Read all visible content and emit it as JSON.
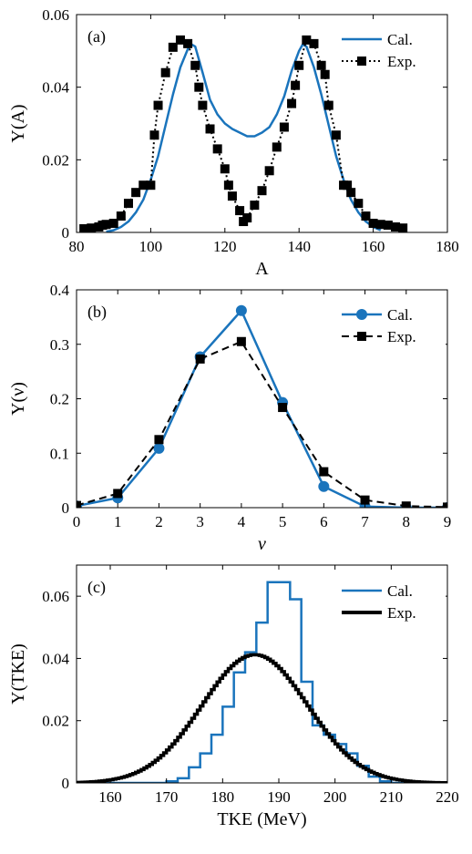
{
  "colors": {
    "cal": "#1a74bc",
    "exp": "#000000"
  },
  "chart_data": [
    {
      "type": "line",
      "panel_label": "(a)",
      "xlabel": "A",
      "ylabel": "Y(A)",
      "xlim": [
        80,
        180
      ],
      "ylim": [
        0,
        0.06
      ],
      "xticks": [
        80,
        100,
        120,
        140,
        160,
        180
      ],
      "yticks": [
        0,
        0.02,
        0.04,
        0.06
      ],
      "ytick_labels": [
        "0",
        "0.02",
        "0.04",
        "0.06"
      ],
      "legend_position": "top-right",
      "series": [
        {
          "name": "Cal.",
          "style": "solid",
          "x": [
            88,
            90,
            92,
            94,
            96,
            98,
            100,
            102,
            104,
            106,
            108,
            110,
            111,
            112,
            114,
            116,
            118,
            120,
            122,
            124,
            126,
            128,
            130,
            132,
            134,
            136,
            138,
            140,
            141,
            142,
            144,
            146,
            148,
            150,
            152,
            154,
            156,
            158,
            160,
            162
          ],
          "y": [
            0.0002,
            0.0006,
            0.0015,
            0.003,
            0.0055,
            0.009,
            0.0145,
            0.021,
            0.0295,
            0.038,
            0.0455,
            0.0505,
            0.0518,
            0.0512,
            0.044,
            0.0365,
            0.0325,
            0.03,
            0.0285,
            0.0275,
            0.0265,
            0.0265,
            0.0275,
            0.029,
            0.0325,
            0.0375,
            0.0445,
            0.05,
            0.0518,
            0.0512,
            0.0455,
            0.038,
            0.0295,
            0.021,
            0.0145,
            0.009,
            0.0055,
            0.003,
            0.0015,
            0.0006
          ]
        },
        {
          "name": "Exp.",
          "style": "dotted-square",
          "x": [
            82,
            84,
            86,
            87,
            88,
            90,
            92,
            94,
            96,
            98,
            100,
            101,
            102,
            104,
            106,
            108,
            110,
            112,
            113,
            114,
            116,
            118,
            120,
            121,
            122,
            124,
            125,
            126,
            128,
            130,
            132,
            134,
            136,
            138,
            139,
            140,
            142,
            144,
            146,
            147,
            148,
            150,
            152,
            153,
            154,
            156,
            158,
            160,
            162,
            164,
            166,
            168
          ],
          "y": [
            0.001,
            0.0012,
            0.0015,
            0.002,
            0.0022,
            0.0025,
            0.0045,
            0.008,
            0.011,
            0.013,
            0.013,
            0.0268,
            0.035,
            0.044,
            0.051,
            0.053,
            0.052,
            0.046,
            0.04,
            0.035,
            0.0285,
            0.023,
            0.0175,
            0.013,
            0.01,
            0.006,
            0.003,
            0.004,
            0.0075,
            0.0115,
            0.017,
            0.0235,
            0.029,
            0.0355,
            0.0405,
            0.046,
            0.053,
            0.052,
            0.046,
            0.0435,
            0.035,
            0.0268,
            0.013,
            0.013,
            0.011,
            0.008,
            0.0045,
            0.0025,
            0.0022,
            0.002,
            0.0015,
            0.0012
          ]
        }
      ]
    },
    {
      "type": "line",
      "panel_label": "(b)",
      "xlabel": "ν",
      "ylabel": "Y(ν)",
      "xlim": [
        0,
        9
      ],
      "ylim": [
        0,
        0.4
      ],
      "xticks": [
        0,
        1,
        2,
        3,
        4,
        5,
        6,
        7,
        8,
        9
      ],
      "yticks": [
        0,
        0.1,
        0.2,
        0.3,
        0.4
      ],
      "ytick_labels": [
        "0",
        "0.1",
        "0.2",
        "0.3",
        "0.4"
      ],
      "legend_position": "top-right",
      "series": [
        {
          "name": "Cal.",
          "style": "solid-circle",
          "x": [
            0,
            1,
            2,
            3,
            4,
            5,
            6,
            7,
            8,
            9
          ],
          "y": [
            0.003,
            0.018,
            0.109,
            0.277,
            0.362,
            0.193,
            0.039,
            0.002,
            0.0,
            0.0
          ]
        },
        {
          "name": "Exp.",
          "style": "dashed-square",
          "x": [
            0,
            1,
            2,
            3,
            4,
            5,
            6,
            7,
            8,
            9
          ],
          "y": [
            0.004,
            0.026,
            0.125,
            0.273,
            0.305,
            0.184,
            0.066,
            0.014,
            0.003,
            0.001
          ]
        }
      ]
    },
    {
      "type": "line",
      "panel_label": "(c)",
      "xlabel": "TKE (MeV)",
      "ylabel": "Y(TKE)",
      "xlim": [
        154,
        220
      ],
      "ylim": [
        0,
        0.07
      ],
      "xticks": [
        160,
        170,
        180,
        190,
        200,
        210,
        220
      ],
      "yticks": [
        0,
        0.02,
        0.04,
        0.06
      ],
      "ytick_labels": [
        "0",
        "0.02",
        "0.04",
        "0.06"
      ],
      "legend_position": "top-right",
      "series": [
        {
          "name": "Cal.",
          "style": "step",
          "edges": [
            154,
            156,
            158,
            160,
            162,
            164,
            166,
            168,
            170,
            172,
            174,
            176,
            178,
            180,
            182,
            184,
            186,
            188,
            190,
            192,
            194,
            196,
            198,
            200,
            202,
            204,
            206,
            208,
            210,
            212,
            214,
            216,
            218,
            220
          ],
          "values": [
            0,
            0,
            0,
            0,
            0,
            0,
            0,
            0,
            0.0005,
            0.0015,
            0.005,
            0.0095,
            0.0155,
            0.0245,
            0.0355,
            0.042,
            0.0515,
            0.0645,
            0.0645,
            0.059,
            0.0325,
            0.0185,
            0.0155,
            0.0125,
            0.0095,
            0.0055,
            0.002,
            0.0005,
            0,
            0,
            0,
            0,
            0
          ]
        },
        {
          "name": "Exp.",
          "style": "thick-step",
          "mean": 185.5,
          "sigma": 9.4,
          "peak": 0.0412
        }
      ]
    }
  ]
}
